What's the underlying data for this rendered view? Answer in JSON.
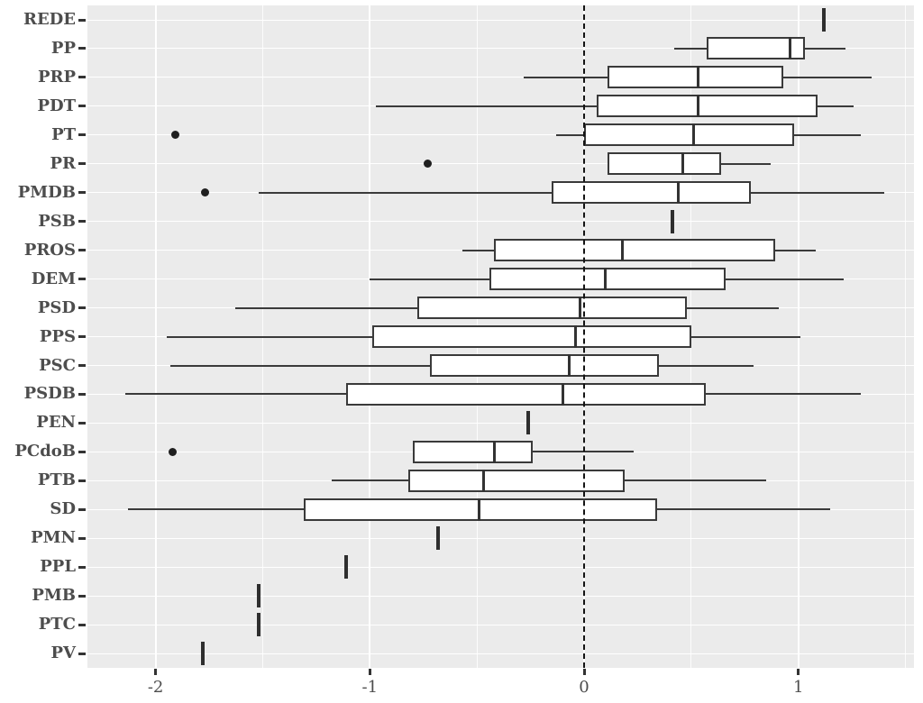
{
  "colors": {
    "panel_background": "#ebebeb",
    "gridline": "#ffffff",
    "box_border": "#3a3a3a",
    "box_fill": "#ffffff",
    "median": "#333333",
    "outlier": "#1f1f1f",
    "reference_line": "#141414",
    "axis_text": "#4d4d4d"
  },
  "chart_data": {
    "type": "boxplot",
    "orientation": "horizontal",
    "title": "",
    "xlabel": "",
    "ylabel": "",
    "grid": "on",
    "xlim": [
      -2.32,
      1.55
    ],
    "x_axis": {
      "tick_values": [
        -2,
        -1,
        0,
        1
      ],
      "tick_labels": [
        "-2",
        "-1",
        "0",
        "1"
      ],
      "minor_tick_values": [
        -1.5,
        -0.5,
        0.5,
        1.5
      ]
    },
    "reference_line": {
      "x": 0,
      "style": "dashed"
    },
    "categories": [
      "REDE",
      "PP",
      "PRP",
      "PDT",
      "PT",
      "PR",
      "PMDB",
      "PSB",
      "PROS",
      "DEM",
      "PSD",
      "PPS",
      "PSC",
      "PSDB",
      "PEN",
      "PCdoB",
      "PTB",
      "SD",
      "PMN",
      "PPL",
      "PMB",
      "PTC",
      "PV"
    ],
    "rows": [
      {
        "party": "REDE",
        "low": 1.12,
        "q1": 1.12,
        "median": 1.12,
        "q3": 1.12,
        "high": 1.12,
        "outliers": []
      },
      {
        "party": "PP",
        "low": 0.42,
        "q1": 0.57,
        "median": 0.96,
        "q3": 1.03,
        "high": 1.22,
        "outliers": []
      },
      {
        "party": "PRP",
        "low": -0.28,
        "q1": 0.11,
        "median": 0.53,
        "q3": 0.93,
        "high": 1.34,
        "outliers": []
      },
      {
        "party": "PDT",
        "low": -0.97,
        "q1": 0.06,
        "median": 0.53,
        "q3": 1.09,
        "high": 1.26,
        "outliers": []
      },
      {
        "party": "PT",
        "low": -0.13,
        "q1": 0.0,
        "median": 0.51,
        "q3": 0.98,
        "high": 1.29,
        "outliers": [
          -1.91
        ]
      },
      {
        "party": "PR",
        "low": 0.11,
        "q1": 0.11,
        "median": 0.46,
        "q3": 0.64,
        "high": 0.87,
        "outliers": [
          -0.73
        ]
      },
      {
        "party": "PMDB",
        "low": -1.52,
        "q1": -0.15,
        "median": 0.44,
        "q3": 0.78,
        "high": 1.4,
        "outliers": [
          -1.77
        ]
      },
      {
        "party": "PSB",
        "low": 0.41,
        "q1": 0.41,
        "median": 0.41,
        "q3": 0.41,
        "high": 0.41,
        "outliers": []
      },
      {
        "party": "PROS",
        "low": -0.57,
        "q1": -0.42,
        "median": 0.18,
        "q3": 0.89,
        "high": 1.08,
        "outliers": []
      },
      {
        "party": "DEM",
        "low": -1.0,
        "q1": -0.44,
        "median": 0.1,
        "q3": 0.66,
        "high": 1.21,
        "outliers": []
      },
      {
        "party": "PSD",
        "low": -1.63,
        "q1": -0.78,
        "median": -0.02,
        "q3": 0.48,
        "high": 0.91,
        "outliers": []
      },
      {
        "party": "PPS",
        "low": -1.95,
        "q1": -0.99,
        "median": -0.04,
        "q3": 0.5,
        "high": 1.01,
        "outliers": []
      },
      {
        "party": "PSC",
        "low": -1.93,
        "q1": -0.72,
        "median": -0.07,
        "q3": 0.35,
        "high": 0.79,
        "outliers": []
      },
      {
        "party": "PSDB",
        "low": -2.14,
        "q1": -1.11,
        "median": -0.1,
        "q3": 0.57,
        "high": 1.29,
        "outliers": []
      },
      {
        "party": "PEN",
        "low": -0.26,
        "q1": -0.26,
        "median": -0.26,
        "q3": -0.26,
        "high": -0.26,
        "outliers": []
      },
      {
        "party": "PCdoB",
        "low": -0.8,
        "q1": -0.8,
        "median": -0.42,
        "q3": -0.24,
        "high": 0.23,
        "outliers": [
          -1.92
        ]
      },
      {
        "party": "PTB",
        "low": -1.18,
        "q1": -0.82,
        "median": -0.47,
        "q3": 0.19,
        "high": 0.85,
        "outliers": []
      },
      {
        "party": "SD",
        "low": -2.13,
        "q1": -1.31,
        "median": -0.49,
        "q3": 0.34,
        "high": 1.15,
        "outliers": []
      },
      {
        "party": "PMN",
        "low": -0.68,
        "q1": -0.68,
        "median": -0.68,
        "q3": -0.68,
        "high": -0.68,
        "outliers": []
      },
      {
        "party": "PPL",
        "low": -1.11,
        "q1": -1.11,
        "median": -1.11,
        "q3": -1.11,
        "high": -1.11,
        "outliers": []
      },
      {
        "party": "PMB",
        "low": -1.52,
        "q1": -1.52,
        "median": -1.52,
        "q3": -1.52,
        "high": -1.52,
        "outliers": []
      },
      {
        "party": "PTC",
        "low": -1.52,
        "q1": -1.52,
        "median": -1.52,
        "q3": -1.52,
        "high": -1.52,
        "outliers": []
      },
      {
        "party": "PV",
        "low": -1.78,
        "q1": -1.78,
        "median": -1.78,
        "q3": -1.78,
        "high": -1.78,
        "outliers": []
      }
    ]
  }
}
